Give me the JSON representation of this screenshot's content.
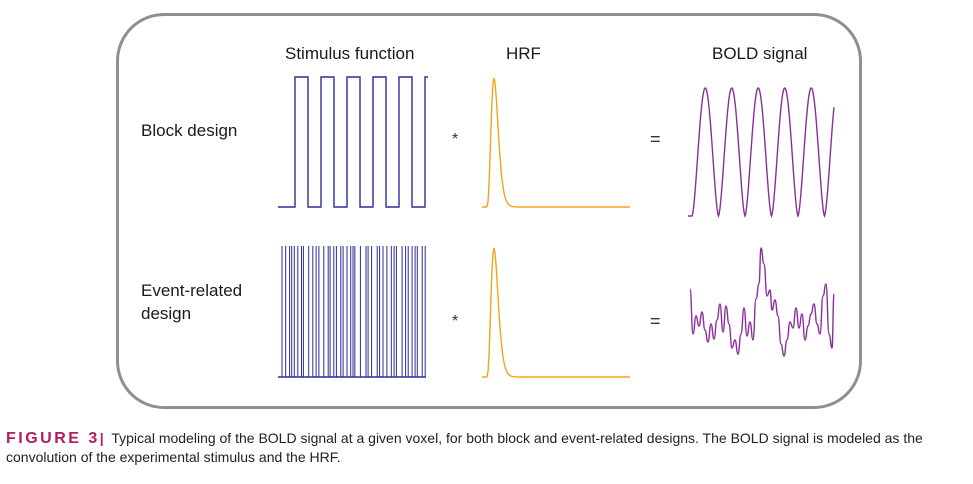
{
  "headers": {
    "stimulus": "Stimulus function",
    "hrf": "HRF",
    "bold": "BOLD signal"
  },
  "rows": {
    "block": "Block design",
    "event_line1": "Event-related",
    "event_line2": "design"
  },
  "operators": {
    "convolve": "*",
    "equals": "="
  },
  "caption": {
    "figure_label": "FIGURE 3",
    "separator": "|",
    "text": "Typical modeling of the BOLD signal at a given voxel, for both block and event-related designs. The BOLD signal is modeled as the convolution of the experimental stimulus and the HRF."
  },
  "colors": {
    "stimulus": "#2b2e9c",
    "hrf": "#f5a21b",
    "bold": "#8a2f9a",
    "border": "#8f8f8f",
    "figure_label": "#b31b5e"
  }
}
